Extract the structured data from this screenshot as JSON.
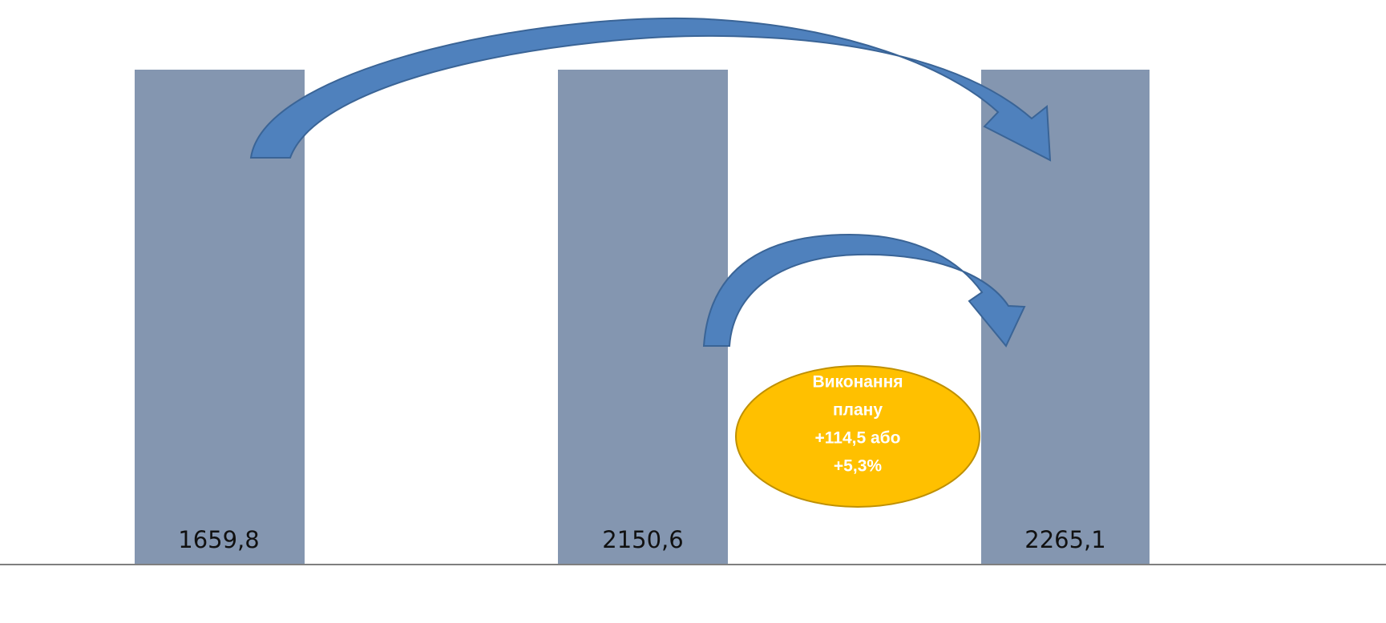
{
  "bars": [
    {
      "label": "1659,8"
    },
    {
      "label": "2150,6"
    },
    {
      "label": "2265,1"
    }
  ],
  "callout": {
    "lines": [
      "Виконання",
      "плану",
      "+114,5 або",
      "+5,3%"
    ]
  }
}
